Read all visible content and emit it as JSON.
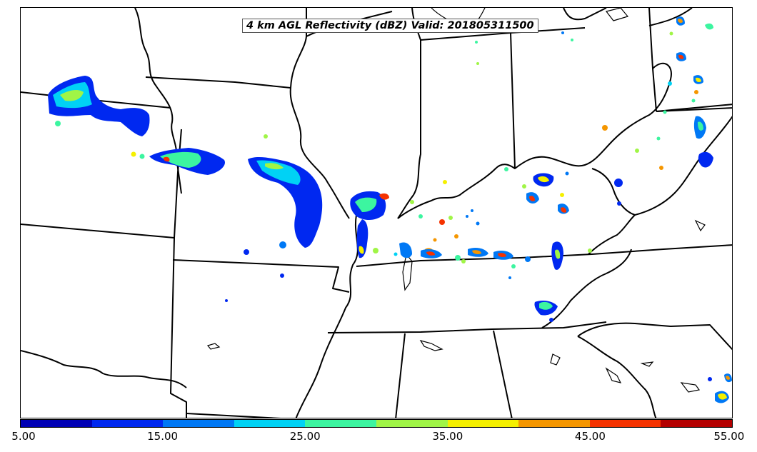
{
  "title": "4 km AGL Reflectivity (dBZ) Valid: 201805311500",
  "colorbar": {
    "colors": [
      "#0000b4",
      "#0028f0",
      "#0078f5",
      "#00d2f5",
      "#3cf5a0",
      "#a0f546",
      "#f5f000",
      "#f59600",
      "#f53200",
      "#b40000"
    ],
    "tick_labels": [
      "5.00",
      "15.00",
      "25.00",
      "35.00",
      "45.00",
      "55.00"
    ]
  },
  "echo_palette": {
    "low": "#0028f0",
    "mid_low": "#0078f5",
    "mid": "#00d2f5",
    "mid_high": "#3cf5a0",
    "high": "#f5f000",
    "very_high": "#f59600",
    "extreme": "#f53200"
  }
}
